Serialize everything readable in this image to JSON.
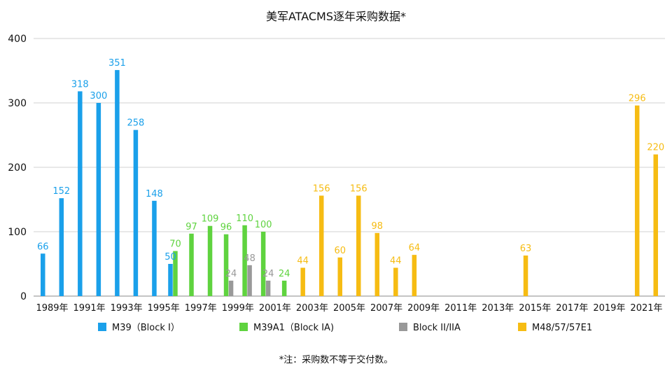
{
  "chart_data": {
    "type": "bar",
    "title": "美军ATACMS逐年采购数据*",
    "xlabel": "",
    "ylabel": "",
    "ylim": [
      0,
      400
    ],
    "yticks": [
      "0",
      "100",
      "200",
      "300",
      "400"
    ],
    "grid": true,
    "legend_position": "bottom",
    "categories": [
      "1989年",
      "1990年",
      "1991年",
      "1992年",
      "1993年",
      "1994年",
      "1995年",
      "1996年",
      "1997年",
      "1998年",
      "1999年",
      "2000年",
      "2001年",
      "2002年",
      "2003年",
      "2004年",
      "2005年",
      "2006年",
      "2007年",
      "2008年",
      "2009年",
      "2010年",
      "2011年",
      "2012年",
      "2013年",
      "2014年",
      "2015年",
      "2016年",
      "2017年",
      "2018年",
      "2019年",
      "2020年",
      "2021年",
      "2022年"
    ],
    "tick_labels": [
      "1989年",
      "1991年",
      "1993年",
      "1995年",
      "1997年",
      "1999年",
      "2001年",
      "2003年",
      "2005年",
      "2007年",
      "2009年",
      "2011年",
      "2013年",
      "2015年",
      "2017年",
      "2019年",
      "2021年"
    ],
    "series": [
      {
        "name": "M39（Block I）",
        "color": "#1aa0ea",
        "values": [
          66,
          152,
          318,
          300,
          351,
          258,
          148,
          50,
          null,
          null,
          null,
          null,
          null,
          null,
          null,
          null,
          null,
          null,
          null,
          null,
          null,
          null,
          null,
          null,
          null,
          null,
          null,
          null,
          null,
          null,
          null,
          null,
          null,
          null
        ]
      },
      {
        "name": "M39A1（Block IA)",
        "color": "#5fd33f",
        "values": [
          null,
          null,
          null,
          null,
          null,
          null,
          null,
          70,
          97,
          109,
          96,
          110,
          100,
          24,
          null,
          null,
          null,
          null,
          null,
          null,
          null,
          null,
          null,
          null,
          null,
          null,
          null,
          null,
          null,
          null,
          null,
          null,
          null,
          null
        ]
      },
      {
        "name": "Block II/IIA",
        "color": "#999999",
        "values": [
          null,
          null,
          null,
          null,
          null,
          null,
          null,
          null,
          null,
          null,
          24,
          48,
          24,
          null,
          null,
          null,
          null,
          null,
          null,
          null,
          null,
          null,
          null,
          null,
          null,
          null,
          null,
          null,
          null,
          null,
          null,
          null,
          null,
          null
        ]
      },
      {
        "name": "M48/57/57E1",
        "color": "#f6bc13",
        "values": [
          null,
          null,
          null,
          null,
          null,
          null,
          null,
          null,
          null,
          null,
          null,
          null,
          null,
          null,
          44,
          156,
          60,
          156,
          98,
          44,
          64,
          null,
          null,
          null,
          null,
          null,
          63,
          null,
          null,
          null,
          null,
          null,
          296,
          220
        ]
      }
    ],
    "footnote": "*注：采购数不等于交付数。"
  }
}
